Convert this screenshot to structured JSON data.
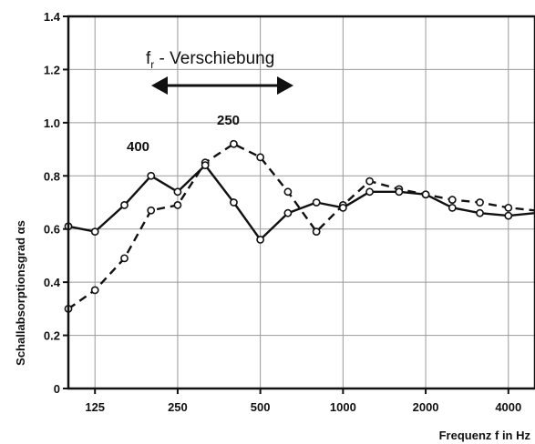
{
  "chart_data": {
    "type": "line",
    "xlabel": "Frequenz f in Hz",
    "ylabel": "Schallabsorptionsgrad αs",
    "xscale": "log",
    "xlim": [
      100,
      5000
    ],
    "ylim": [
      0,
      1.4
    ],
    "grid": true,
    "x_ticks": [
      125,
      250,
      500,
      1000,
      2000,
      4000
    ],
    "x_tick_labels": [
      "125",
      "250",
      "500",
      "1000",
      "2000",
      "4000"
    ],
    "y_ticks": [
      0,
      0.2,
      0.4,
      0.6,
      0.8,
      1.0,
      1.2,
      1.4
    ],
    "y_tick_labels": [
      "0",
      "0.2",
      "0.4",
      "0.6",
      "0.8",
      "1.0",
      "1.2",
      "1.4"
    ],
    "series": [
      {
        "name": "400",
        "line_style": "solid",
        "color": "#111111",
        "x": [
          100,
          125,
          160,
          200,
          250,
          315,
          400,
          500,
          630,
          800,
          1000,
          1250,
          1600,
          2000,
          2500,
          3150,
          4000,
          5000
        ],
        "y": [
          0.61,
          0.59,
          0.69,
          0.8,
          0.74,
          0.84,
          0.7,
          0.56,
          0.66,
          0.7,
          0.68,
          0.74,
          0.74,
          0.73,
          0.68,
          0.66,
          0.65,
          0.66
        ]
      },
      {
        "name": "250",
        "line_style": "dashed",
        "color": "#111111",
        "x": [
          100,
          125,
          160,
          200,
          250,
          315,
          400,
          500,
          630,
          800,
          1000,
          1250,
          1600,
          2000,
          2500,
          3150,
          4000,
          5000
        ],
        "y": [
          0.3,
          0.37,
          0.49,
          0.67,
          0.69,
          0.85,
          0.92,
          0.87,
          0.74,
          0.59,
          0.69,
          0.78,
          0.75,
          0.73,
          0.71,
          0.7,
          0.68,
          0.67
        ]
      }
    ],
    "annotations": {
      "shift_label_main": "f",
      "shift_label_sub": "r",
      "shift_label_rest": " - Verschiebung",
      "label_400": "400",
      "label_250": "250"
    }
  }
}
